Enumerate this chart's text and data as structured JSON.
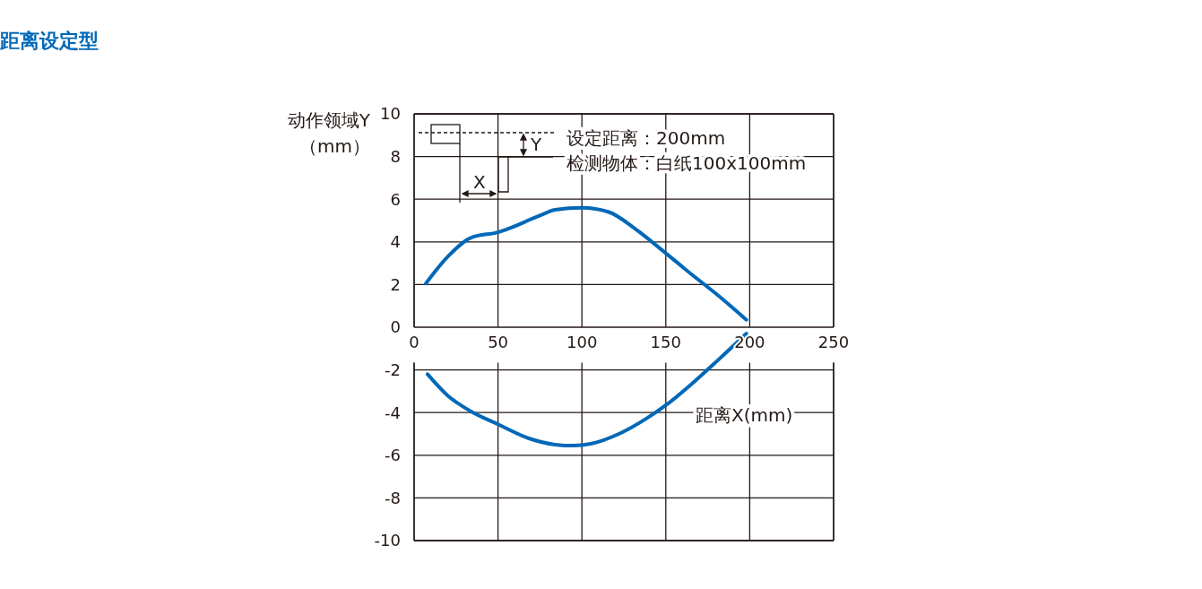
{
  "chart_data": {
    "type": "line",
    "title": "距离设定型",
    "xlabel": "距离X(mm)",
    "ylabel": "动作领域Y\n（mm）",
    "xlim": [
      0,
      250
    ],
    "xticks": [
      0,
      50,
      100,
      150,
      200,
      250
    ],
    "ylim": [
      -10,
      10
    ],
    "yticks": [
      -10,
      -8,
      -6,
      -4,
      -2,
      0,
      2,
      4,
      6,
      8,
      10
    ],
    "grid": true,
    "annotations": [
      "Y",
      "X",
      "设定距离：200mm",
      "检测物体：白纸100x100mm"
    ],
    "series": [
      {
        "color": "#0068b7",
        "x": [
          7,
          20,
          34,
          50,
          74,
          84,
          100,
          116,
          132,
          148,
          165,
          181,
          198
        ],
        "values": [
          2.05,
          3.3,
          4.2,
          4.45,
          5.2,
          5.5,
          5.6,
          5.4,
          4.6,
          3.6,
          2.5,
          1.5,
          0.35
        ]
      },
      {
        "color": "#0068b7",
        "x": [
          8,
          20,
          34,
          50,
          68,
          84,
          95,
          106,
          122,
          138,
          151,
          167,
          181,
          198
        ],
        "values": [
          -2.2,
          -3.2,
          -3.95,
          -4.55,
          -5.2,
          -5.5,
          -5.55,
          -5.45,
          -5.0,
          -4.3,
          -3.6,
          -2.55,
          -1.55,
          -0.3
        ]
      }
    ]
  }
}
